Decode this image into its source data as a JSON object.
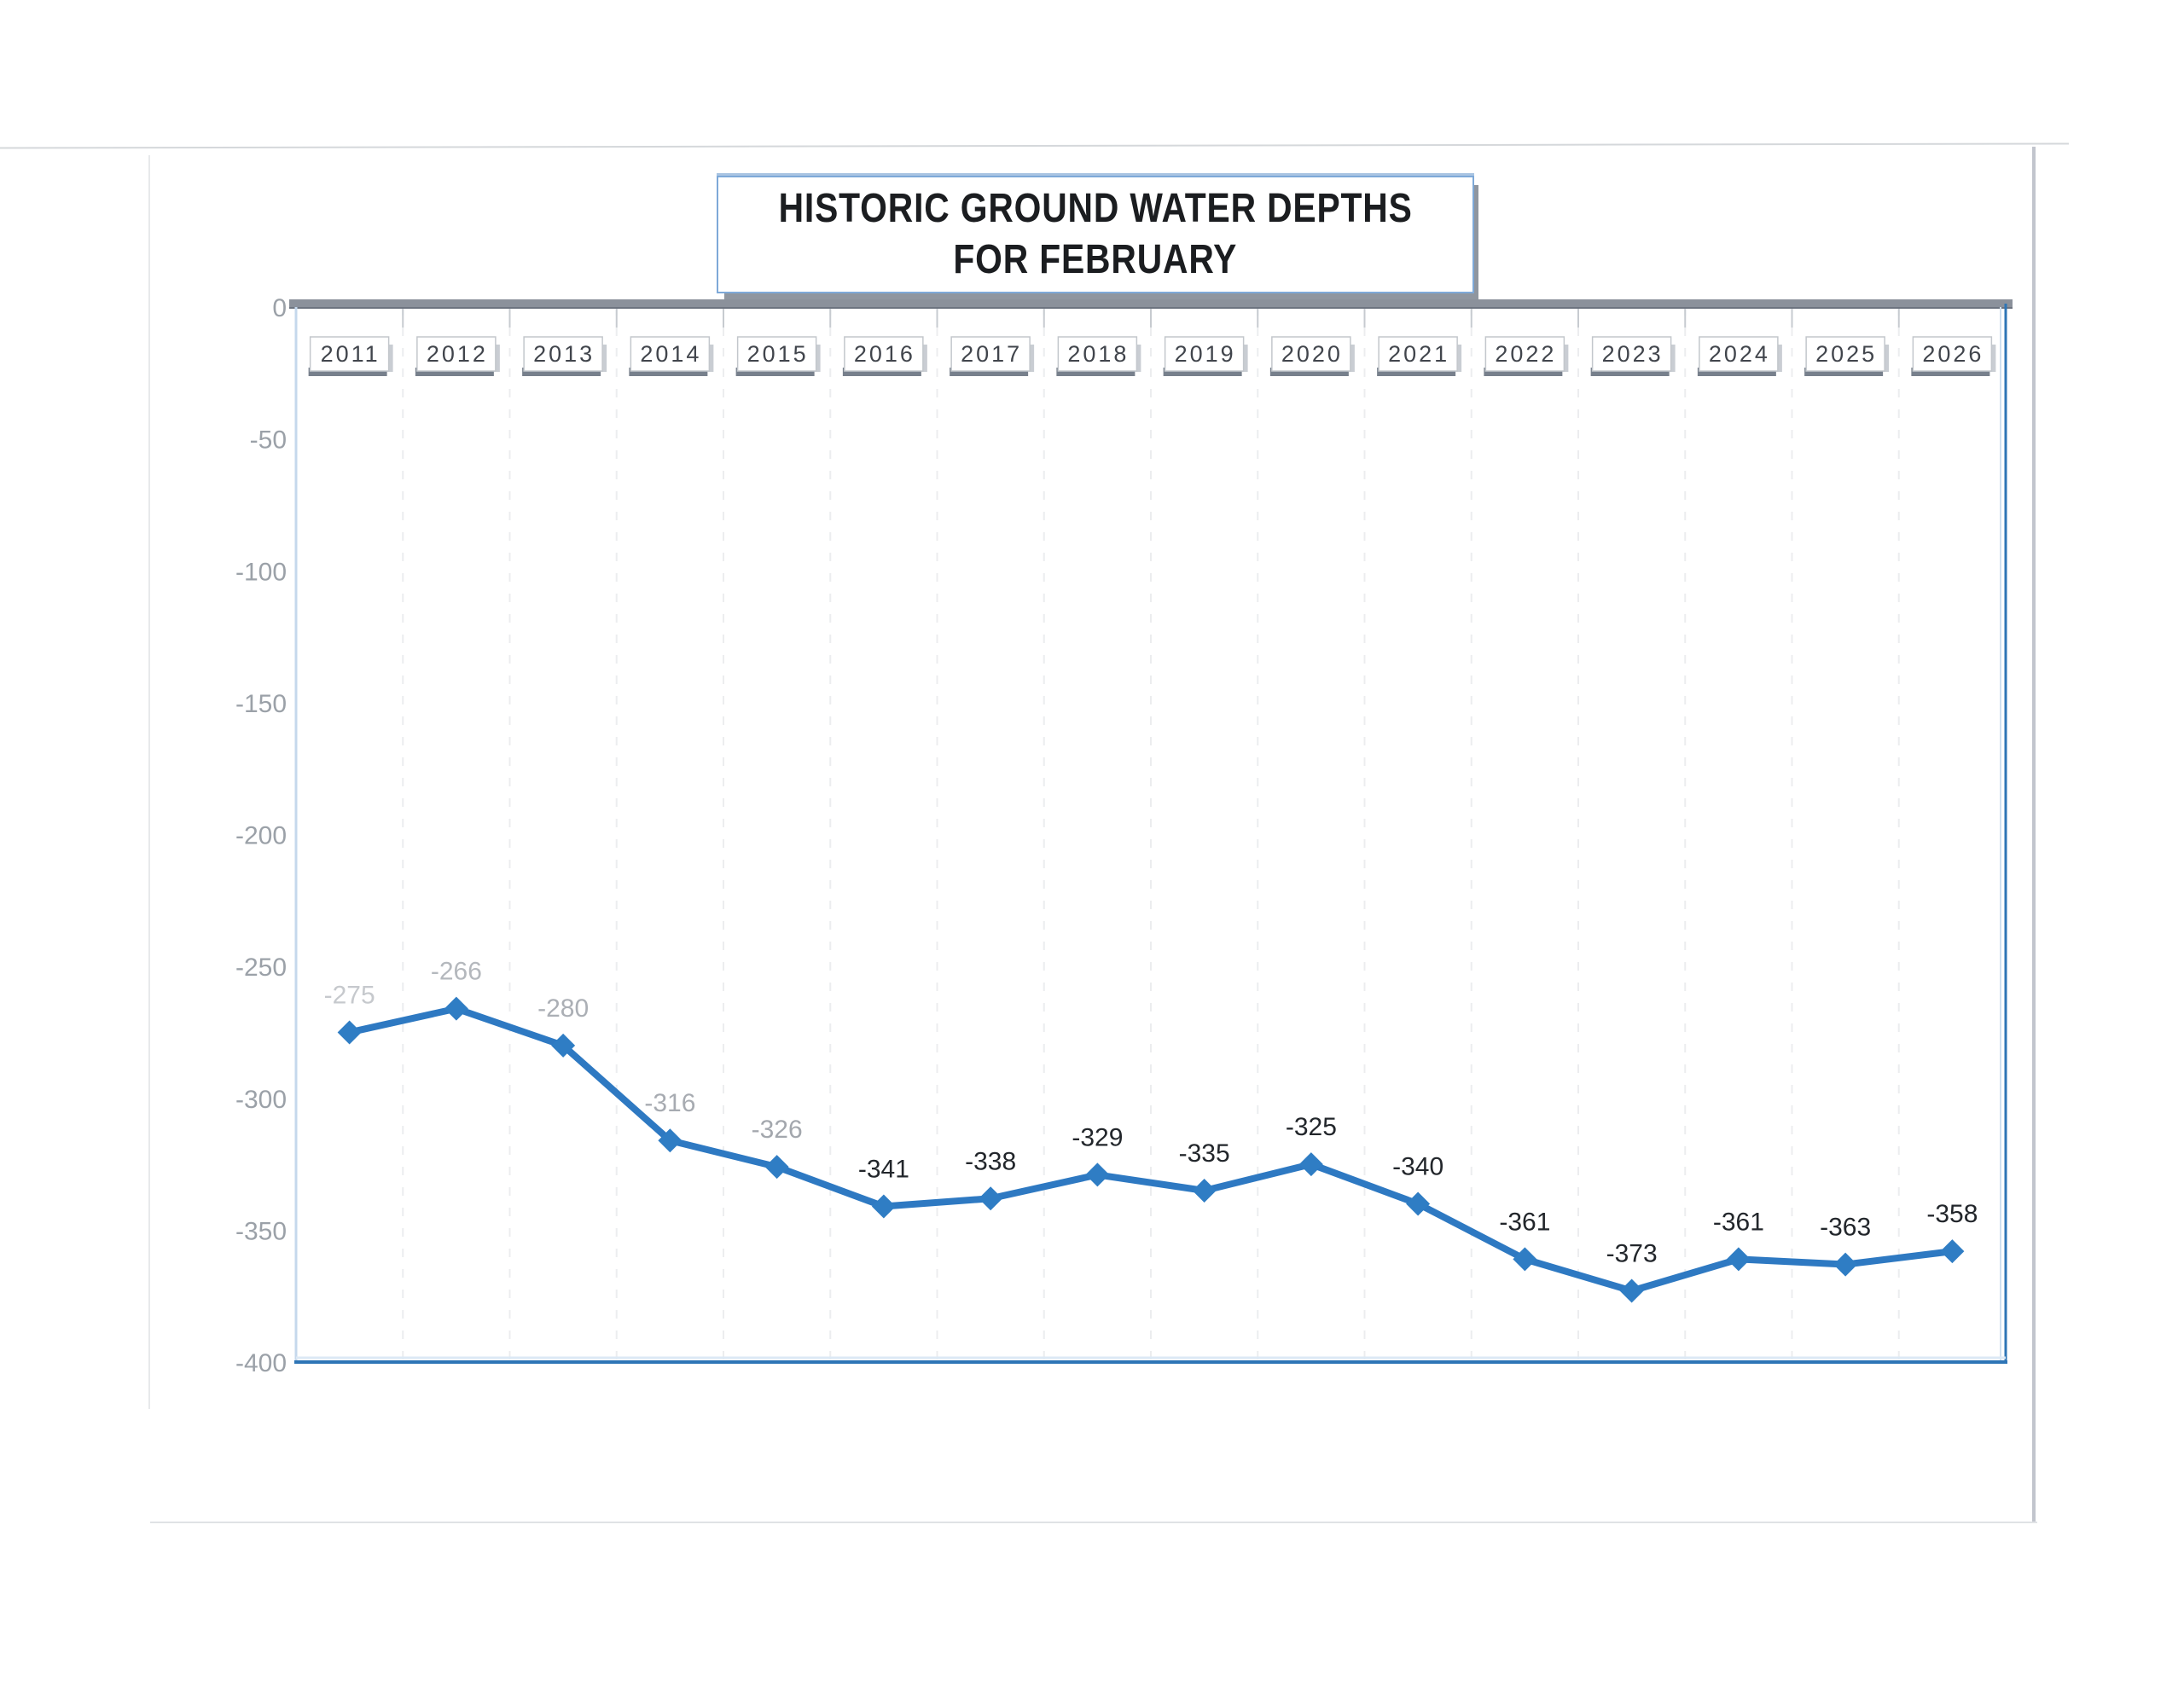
{
  "title": {
    "line1": "HISTORIC GROUND WATER DEPTHS",
    "line2": "FOR FEBRUARY"
  },
  "chart_data": {
    "type": "line",
    "title": "HISTORIC GROUND WATER DEPTHS FOR FEBRUARY",
    "categories": [
      "2011",
      "2012",
      "2013",
      "2014",
      "2015",
      "2016",
      "2017",
      "2018",
      "2019",
      "2020",
      "2021",
      "2022",
      "2023",
      "2024",
      "2025",
      "2026"
    ],
    "values": [
      -275,
      -266,
      -280,
      -316,
      -326,
      -341,
      -338,
      -329,
      -335,
      -325,
      -340,
      -361,
      -373,
      -361,
      -363,
      -358
    ],
    "point_labels": [
      "-275",
      "-266",
      "-280",
      "-316",
      "-326",
      "-341",
      "-338",
      "-329",
      "-335",
      "-325",
      "-340",
      "-361",
      "-373",
      "-361",
      "-363",
      "-358"
    ],
    "point_label_colors": [
      "#c6c9cd",
      "#b4b8bd",
      "#abafb5",
      "#a7abb1",
      "#a3a7ad",
      "#22262b",
      "#22262b",
      "#22262b",
      "#22262b",
      "#22262b",
      "#22262b",
      "#22262b",
      "#22262b",
      "#22262b",
      "#22262b",
      "#22262b"
    ],
    "xlabel": "",
    "ylabel": "",
    "ylim": [
      -400,
      0
    ],
    "y_ticks": [
      0,
      -50,
      -100,
      -150,
      -200,
      -250,
      -300,
      -350,
      -400
    ],
    "grid": "faint-dashed-vertical-gridlines",
    "legend_position": "none",
    "line_color": "#2e79c2",
    "marker": "diamond",
    "marker_color": "#2f7dc4",
    "axis_label_color": "#9ba1a8",
    "year_label_color": "#41454c",
    "plot_border_blue": "#2e75b6",
    "plot_border_left_color": "#c5d8ec",
    "top_axis_color": "#8b919b",
    "gridline_color": "#ecedef"
  }
}
